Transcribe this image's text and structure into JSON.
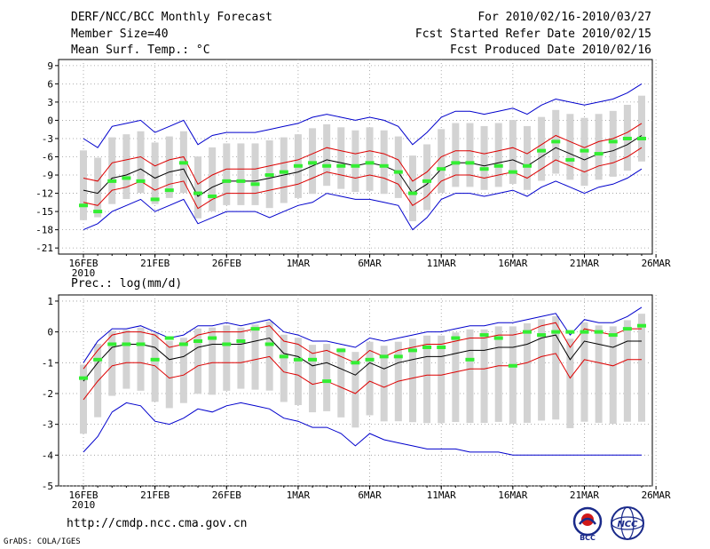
{
  "header": {
    "title": "DERF/NCC/BCC Monthly Forecast",
    "member_size": "Member Size=40",
    "variable": "Mean Surf. Temp.: °C",
    "forecast_for": "For 2010/02/16-2010/03/27",
    "fcst_started": "Fcst Started Refer Date 2010/02/15",
    "fcst_produced": "Fcst Produced Date 2010/02/16"
  },
  "footer": {
    "url": "http://cmdp.ncc.cma.gov.cn",
    "grads": "GrADS: COLA/IGES",
    "logo_bcc": "BCC",
    "logo_ncc": "NCC"
  },
  "colors": {
    "envelope": "#0000cc",
    "spread": "#dd0000",
    "mean": "#000000",
    "box": "#d3d3d3",
    "observed": "#33ee33"
  },
  "chart_data": [
    {
      "type": "line",
      "title": "Mean Surf. Temp.: °C",
      "x_tick_labels": [
        "16FEB",
        "21FEB",
        "26FEB",
        "1MAR",
        "6MAR",
        "11MAR",
        "16MAR",
        "21MAR",
        "26MAR"
      ],
      "year_label": "2010",
      "days": 40,
      "ylim": [
        -22,
        10
      ],
      "yticks": [
        9,
        6,
        3,
        0,
        -3,
        -6,
        -9,
        -12,
        -15,
        -18,
        -21
      ],
      "series": {
        "mean": [
          -11.5,
          -12,
          -9.5,
          -9,
          -8,
          -9.5,
          -8.5,
          -8,
          -12.5,
          -11,
          -10,
          -10,
          -10,
          -9.5,
          -9,
          -8.5,
          -7.5,
          -6.5,
          -7,
          -7.5,
          -7,
          -7.5,
          -8.5,
          -12,
          -10.5,
          -8,
          -7,
          -7,
          -7.5,
          -7,
          -6.5,
          -7.5,
          -6,
          -4.5,
          -5.5,
          -6.5,
          -5.5,
          -5,
          -4,
          -2.5
        ],
        "upper": [
          -9.5,
          -10,
          -7,
          -6.5,
          -6,
          -7.5,
          -6.5,
          -6,
          -10.5,
          -9,
          -8,
          -8,
          -8,
          -7.5,
          -7,
          -6.5,
          -5.5,
          -4.5,
          -5,
          -5.5,
          -5,
          -5.5,
          -6.5,
          -10,
          -8.5,
          -6,
          -5,
          -5,
          -5.5,
          -5,
          -4.5,
          -5.5,
          -4,
          -2.5,
          -3.5,
          -4.5,
          -3.5,
          -3,
          -2,
          -0.5
        ],
        "lower": [
          -13.5,
          -14,
          -11.5,
          -11,
          -10,
          -11.5,
          -10.5,
          -10,
          -14.5,
          -13,
          -12,
          -12,
          -12,
          -11.5,
          -11,
          -10.5,
          -9.5,
          -8.5,
          -9,
          -9.5,
          -9,
          -9.5,
          -10.5,
          -14,
          -12.5,
          -10,
          -9,
          -9,
          -9.5,
          -9,
          -8.5,
          -9.5,
          -8,
          -6.5,
          -7.5,
          -8.5,
          -7.5,
          -7,
          -6,
          -4.5
        ],
        "max": [
          -3,
          -4.5,
          -1,
          -0.5,
          0,
          -2,
          -1,
          0,
          -4,
          -2.5,
          -2,
          -2,
          -2,
          -1.5,
          -1,
          -0.5,
          0.5,
          1,
          0.5,
          0,
          0.5,
          0,
          -1,
          -4,
          -2,
          0.5,
          1.5,
          1.5,
          1,
          1.5,
          2,
          1,
          2.5,
          3.5,
          3,
          2.5,
          3,
          3.5,
          4.5,
          6
        ],
        "min": [
          -18,
          -17,
          -15,
          -14,
          -13,
          -15,
          -14,
          -13,
          -17,
          -16,
          -15,
          -15,
          -15,
          -16,
          -15,
          -14,
          -13.5,
          -12,
          -12.5,
          -13,
          -13,
          -13.5,
          -14,
          -18,
          -16,
          -13,
          -12,
          -12,
          -12.5,
          -12,
          -11.5,
          -12.5,
          -11,
          -10,
          -11,
          -12,
          -11,
          -10.5,
          -9.5,
          -8
        ],
        "obs": [
          -14,
          -15,
          -10,
          -9.5,
          -10,
          -13,
          -11.5,
          -7,
          -12,
          -12.5,
          -10,
          -10,
          -10.5,
          -9,
          -8.5,
          -7.5,
          -7,
          -7.5,
          -7.5,
          -7.5,
          -7,
          -7.5,
          -8.5,
          -12,
          -10,
          -8,
          -7,
          -7,
          -8,
          -7.5,
          -8.5,
          -7.5,
          -5,
          -3.5,
          -6.5,
          -5,
          -5.5,
          -3.5,
          -3,
          -3
        ]
      }
    },
    {
      "type": "line",
      "title": "Prec.: log(mm/d)",
      "x_tick_labels": [
        "16FEB",
        "21FEB",
        "26FEB",
        "1MAR",
        "6MAR",
        "11MAR",
        "16MAR",
        "21MAR",
        "26MAR"
      ],
      "year_label": "2010",
      "days": 40,
      "ylim": [
        -5,
        1.2
      ],
      "yticks": [
        1,
        0,
        -1,
        -2,
        -3,
        -4,
        -5
      ],
      "series": {
        "mean": [
          -1.6,
          -1.0,
          -0.5,
          -0.4,
          -0.4,
          -0.5,
          -0.9,
          -0.8,
          -0.5,
          -0.4,
          -0.4,
          -0.4,
          -0.3,
          -0.2,
          -0.7,
          -0.8,
          -1.1,
          -1.0,
          -1.2,
          -1.4,
          -1.0,
          -1.2,
          -1.0,
          -0.9,
          -0.8,
          -0.8,
          -0.7,
          -0.6,
          -0.6,
          -0.5,
          -0.5,
          -0.4,
          -0.2,
          -0.1,
          -0.9,
          -0.3,
          -0.4,
          -0.5,
          -0.3,
          -0.3
        ],
        "upper": [
          -1.2,
          -0.6,
          -0.1,
          0.0,
          0.0,
          -0.1,
          -0.5,
          -0.4,
          -0.1,
          0.0,
          0.0,
          0.0,
          0.1,
          0.2,
          -0.3,
          -0.4,
          -0.7,
          -0.6,
          -0.8,
          -1.0,
          -0.6,
          -0.8,
          -0.6,
          -0.5,
          -0.4,
          -0.4,
          -0.3,
          -0.2,
          -0.2,
          -0.1,
          -0.1,
          0.0,
          0.2,
          0.3,
          -0.5,
          0.1,
          0.0,
          -0.1,
          0.1,
          0.1
        ],
        "lower": [
          -2.2,
          -1.6,
          -1.1,
          -1.0,
          -1.0,
          -1.1,
          -1.5,
          -1.4,
          -1.1,
          -1.0,
          -1.0,
          -1.0,
          -0.9,
          -0.8,
          -1.3,
          -1.4,
          -1.7,
          -1.6,
          -1.8,
          -2.0,
          -1.6,
          -1.8,
          -1.6,
          -1.5,
          -1.4,
          -1.4,
          -1.3,
          -1.2,
          -1.2,
          -1.1,
          -1.1,
          -1.0,
          -0.8,
          -0.7,
          -1.5,
          -0.9,
          -1.0,
          -1.1,
          -0.9,
          -0.9
        ],
        "max": [
          -1.0,
          -0.3,
          0.1,
          0.1,
          0.2,
          0.0,
          -0.2,
          -0.1,
          0.2,
          0.2,
          0.3,
          0.2,
          0.3,
          0.4,
          0.0,
          -0.1,
          -0.3,
          -0.3,
          -0.4,
          -0.5,
          -0.2,
          -0.3,
          -0.2,
          -0.1,
          0.0,
          0.0,
          0.1,
          0.2,
          0.2,
          0.3,
          0.3,
          0.4,
          0.5,
          0.6,
          -0.1,
          0.4,
          0.3,
          0.3,
          0.5,
          0.8
        ],
        "min": [
          -3.9,
          -3.4,
          -2.6,
          -2.3,
          -2.4,
          -2.9,
          -3.0,
          -2.8,
          -2.5,
          -2.6,
          -2.4,
          -2.3,
          -2.4,
          -2.5,
          -2.8,
          -2.9,
          -3.1,
          -3.1,
          -3.3,
          -3.7,
          -3.3,
          -3.5,
          -3.6,
          -3.7,
          -3.8,
          -3.8,
          -3.8,
          -3.9,
          -3.9,
          -3.9,
          -4.0,
          -4.0,
          -4.0,
          -4.0,
          -4.0,
          -4.0,
          -4.0,
          -4.0,
          -4.0,
          -4.0
        ],
        "obs": [
          -1.5,
          -0.9,
          -0.4,
          -0.4,
          -0.4,
          -0.9,
          -0.2,
          -0.4,
          -0.3,
          -0.2,
          -0.4,
          -0.3,
          0.1,
          -0.4,
          -0.8,
          -0.9,
          -0.9,
          -1.6,
          -0.6,
          -1.0,
          -0.9,
          -0.8,
          -0.8,
          -0.6,
          -0.5,
          -0.5,
          -0.2,
          -0.9,
          -0.1,
          -0.2,
          -1.1,
          0.0,
          -0.1,
          0.0,
          0.0,
          0.0,
          0.0,
          -0.1,
          0.1,
          0.2
        ]
      }
    }
  ]
}
